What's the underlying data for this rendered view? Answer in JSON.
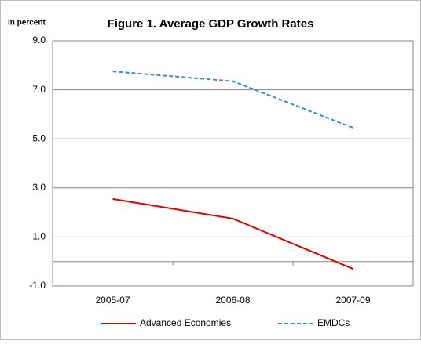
{
  "chart_data": {
    "type": "line",
    "title": "Figure 1. Average GDP Growth Rates",
    "ylabel": "In percent",
    "categories": [
      "2005-07",
      "2006-08",
      "2007-09"
    ],
    "series": [
      {
        "name": "Advanced Economies",
        "color": "#e00000",
        "dash": "solid",
        "values": [
          2.55,
          1.75,
          -0.3
        ]
      },
      {
        "name": "EMDCs",
        "color": "#3a8ccc",
        "dash": "dashed",
        "values": [
          7.75,
          7.35,
          5.45
        ]
      }
    ],
    "ylim": [
      -1,
      9
    ],
    "yticks": [
      {
        "value": -1,
        "label": "-1.0"
      },
      {
        "value": 1,
        "label": "1.0"
      },
      {
        "value": 3,
        "label": "3.0"
      },
      {
        "value": 5,
        "label": "5.0"
      },
      {
        "value": 7,
        "label": "7.0"
      },
      {
        "value": 9,
        "label": "9.0"
      }
    ],
    "grid": true,
    "legend": "bottom"
  }
}
